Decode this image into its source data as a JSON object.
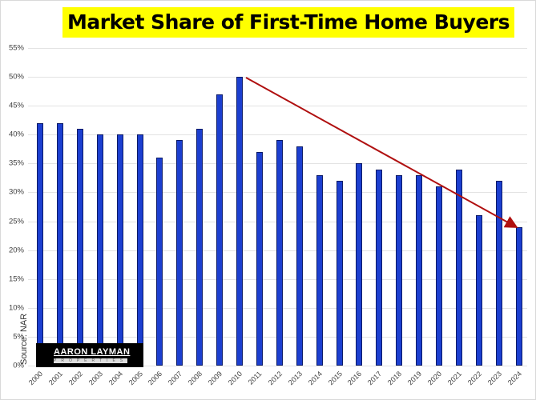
{
  "chart_data": {
    "type": "bar",
    "title": "Market Share of First-Time Home Buyers",
    "xlabel": "",
    "ylabel": "",
    "ylim": [
      0,
      55
    ],
    "yticks": [
      "0%",
      "5%",
      "10%",
      "15%",
      "20%",
      "25%",
      "30%",
      "35%",
      "40%",
      "45%",
      "50%",
      "55%"
    ],
    "grid": true,
    "legend": null,
    "categories": [
      "2000",
      "2001",
      "2002",
      "2003",
      "2004",
      "2005",
      "2006",
      "2007",
      "2008",
      "2009",
      "2010",
      "2011",
      "2012",
      "2013",
      "2014",
      "2015",
      "2016",
      "2017",
      "2018",
      "2019",
      "2020",
      "2021",
      "2022",
      "2023",
      "2024"
    ],
    "values": [
      42,
      42,
      41,
      40,
      40,
      40,
      36,
      39,
      41,
      47,
      50,
      37,
      39,
      38,
      33,
      32,
      35,
      34,
      33,
      33,
      31,
      34,
      26,
      32,
      24
    ],
    "bar_color": "#1c3fd0",
    "annotations": [
      {
        "type": "arrow",
        "from": {
          "x": "2010",
          "y": 50
        },
        "to": {
          "x": "2024",
          "y": 24
        },
        "color": "#b01010"
      },
      {
        "type": "text",
        "text": "Source: NAR",
        "rotation": -90
      }
    ]
  },
  "title": "Market Share of First-Time Home Buyers",
  "source": "Source: NAR",
  "logo": {
    "main": "AARON LAYMAN",
    "sub": "PROPERTIES"
  }
}
